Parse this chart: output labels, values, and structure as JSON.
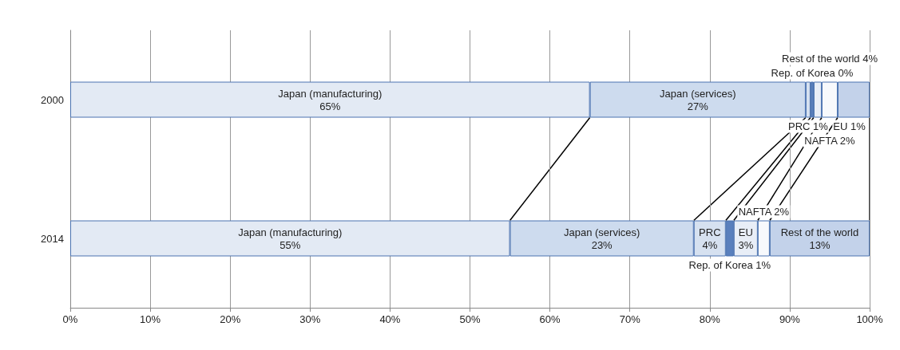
{
  "chart_data": {
    "type": "bar",
    "orientation": "horizontal",
    "stacked": true,
    "categories": [
      "2000",
      "2014"
    ],
    "series": [
      {
        "name": "Japan (manufacturing)",
        "color": "#e3eaf4",
        "values": [
          65,
          55
        ],
        "value_labels": [
          "65%",
          "55%"
        ]
      },
      {
        "name": "Japan (services)",
        "color": "#cddbee",
        "values": [
          27,
          23
        ],
        "value_labels": [
          "27%",
          "23%"
        ]
      },
      {
        "name": "PRC",
        "color": "#d6e1f0",
        "values": [
          0.6,
          4
        ],
        "value_labels": [
          "1%",
          "4%"
        ]
      },
      {
        "name": "Rep. of Korea",
        "color": "#5a80bd",
        "values": [
          0.4,
          1
        ],
        "value_labels": [
          "0%",
          "1%"
        ]
      },
      {
        "name": "EU",
        "color": "#e8eef7",
        "values": [
          1,
          3
        ],
        "value_labels": [
          "1%",
          "3%"
        ]
      },
      {
        "name": "NAFTA",
        "color": "#f7f9fc",
        "values": [
          2,
          1.5
        ],
        "value_labels": [
          "2%",
          "2%"
        ]
      },
      {
        "name": "Rest of the world",
        "color": "#c3d2ea",
        "values": [
          4,
          12.5
        ],
        "value_labels": [
          "4%",
          "13%"
        ]
      }
    ],
    "xlim": [
      0,
      100
    ],
    "xticks": [
      {
        "value": 0,
        "label": "0%"
      },
      {
        "value": 10,
        "label": "10%"
      },
      {
        "value": 20,
        "label": "20%"
      },
      {
        "value": 30,
        "label": "30%"
      },
      {
        "value": 40,
        "label": "40%"
      },
      {
        "value": 50,
        "label": "50%"
      },
      {
        "value": 60,
        "label": "60%"
      },
      {
        "value": 70,
        "label": "70%"
      },
      {
        "value": 80,
        "label": "80%"
      },
      {
        "value": 90,
        "label": "90%"
      },
      {
        "value": 100,
        "label": "100%"
      }
    ],
    "grid": "x",
    "legend": false
  }
}
